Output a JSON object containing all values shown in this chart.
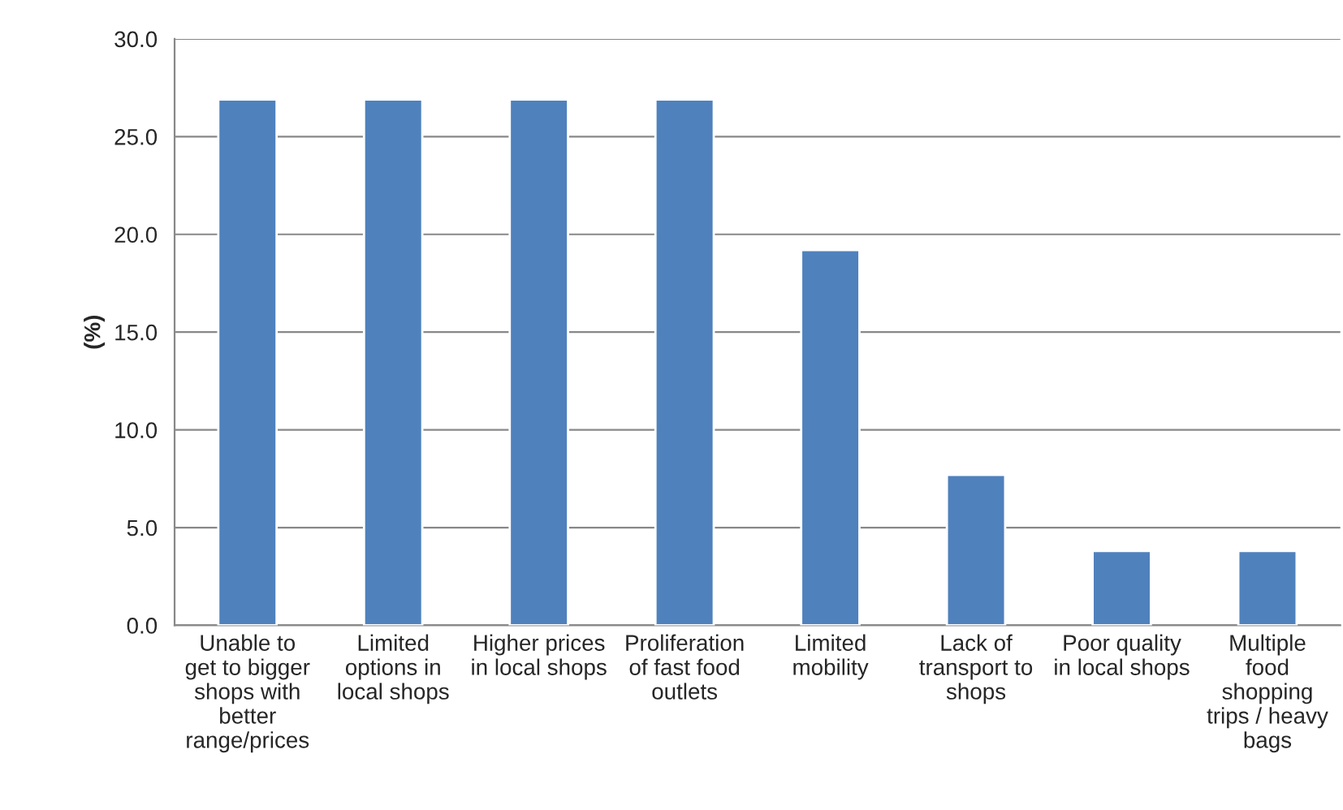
{
  "chart_data": {
    "type": "bar",
    "ylabel": "(%)",
    "categories": [
      "Unable to\nget to bigger\nshops with\nbetter\nrange/prices",
      "Limited\noptions in\nlocal shops",
      "Higher prices\nin local shops",
      "Proliferation\nof fast food\noutlets",
      "Limited\nmobility",
      "Lack of\ntransport to\nshops",
      "Poor quality\nin local shops",
      "Multiple\nfood\nshopping\ntrips / heavy\nbags"
    ],
    "values": [
      26.9,
      26.9,
      26.9,
      26.9,
      19.2,
      7.7,
      3.8,
      3.8
    ],
    "color": "#4f81bd",
    "ylim": [
      0,
      30
    ],
    "yticks": [
      {
        "value": 0,
        "label": "0.0"
      },
      {
        "value": 5,
        "label": "5.0"
      },
      {
        "value": 10,
        "label": "10.0"
      },
      {
        "value": 15,
        "label": "15.0"
      },
      {
        "value": 20,
        "label": "20.0"
      },
      {
        "value": 25,
        "label": "25.0"
      },
      {
        "value": 30,
        "label": "30.0"
      }
    ],
    "grid": "y",
    "legend": false
  }
}
